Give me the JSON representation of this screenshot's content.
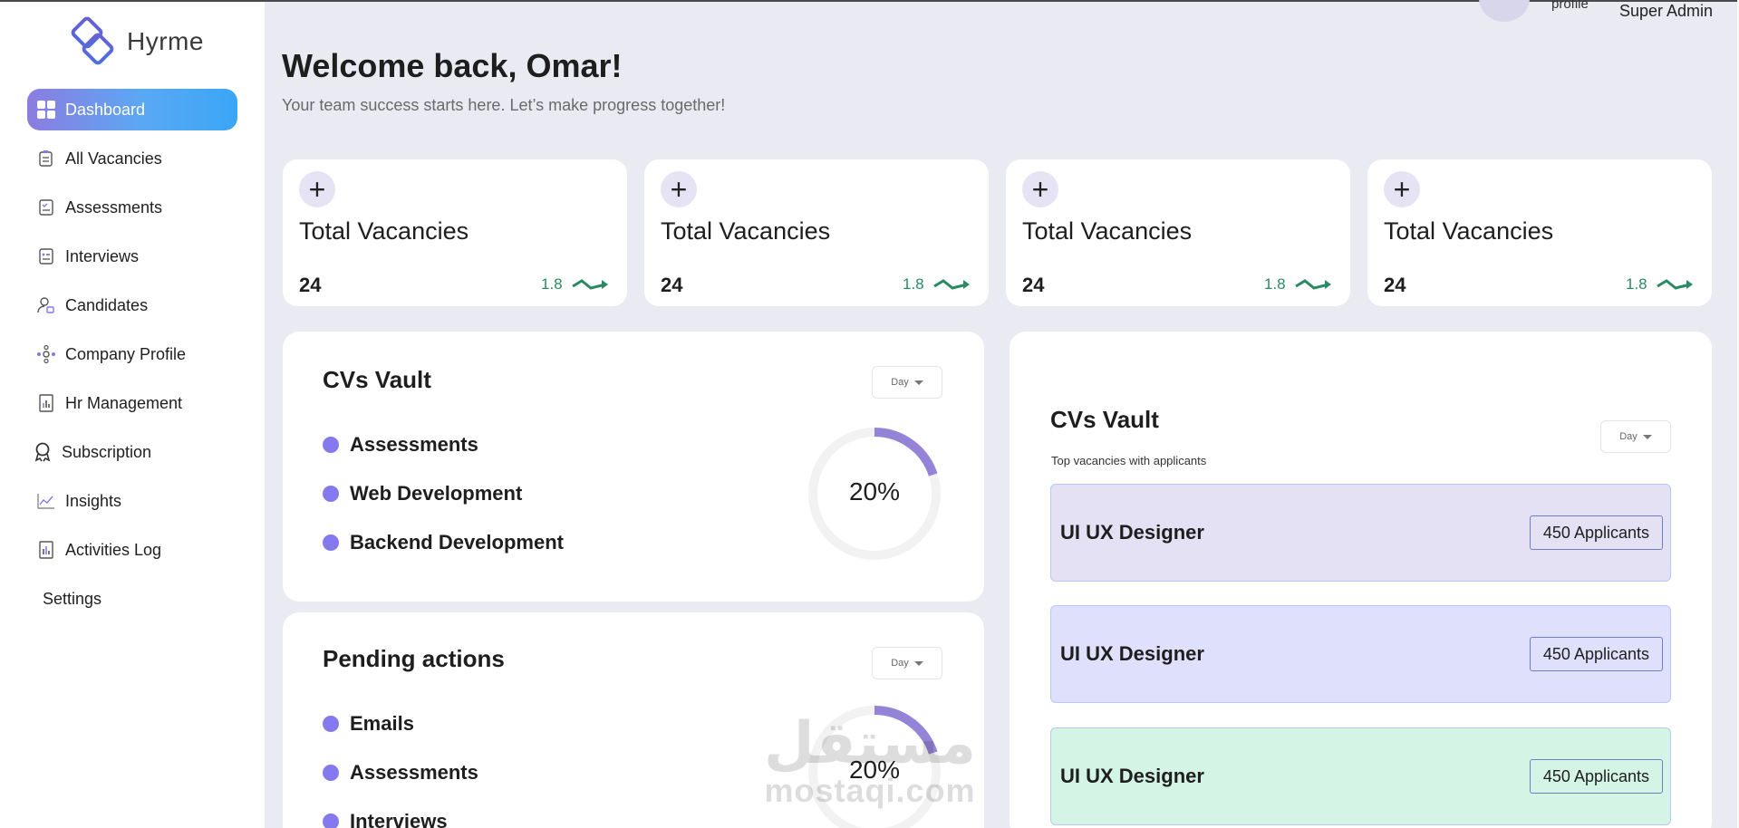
{
  "brand": {
    "name": "Hyrme"
  },
  "sidebar": {
    "items": [
      {
        "label": "Dashboard",
        "icon": "dashboard-icon"
      },
      {
        "label": "All Vacancies",
        "icon": "clipboard-icon"
      },
      {
        "label": "Assessments",
        "icon": "checklist-icon"
      },
      {
        "label": "Interviews",
        "icon": "calendar-list-icon"
      },
      {
        "label": "Candidates",
        "icon": "user-lock-icon"
      },
      {
        "label": "Company Profile",
        "icon": "network-icon"
      },
      {
        "label": "Hr Management",
        "icon": "report-icon"
      },
      {
        "label": "Subscription",
        "icon": "award-icon"
      },
      {
        "label": "Insights",
        "icon": "chart-icon"
      },
      {
        "label": "Activities Log",
        "icon": "log-icon"
      },
      {
        "label": "Settings",
        "icon": ""
      }
    ]
  },
  "header": {
    "profile_label": "profile",
    "role": "Super Admin",
    "welcome": "Welcome back, Omar!",
    "subtitle": "Your team success starts here. Let’s make progress together!"
  },
  "stats": [
    {
      "title": "Total Vacancies",
      "value": "24",
      "change": "1.8"
    },
    {
      "title": "Total Vacancies",
      "value": "24",
      "change": "1.8"
    },
    {
      "title": "Total Vacancies",
      "value": "24",
      "change": "1.8"
    },
    {
      "title": "Total Vacancies",
      "value": "24",
      "change": "1.8"
    }
  ],
  "cvs_panel": {
    "title": "CVs Vault",
    "filter": "Day",
    "items": [
      "Assessments",
      "Web Development",
      "Backend Development"
    ],
    "percent_label": "20%",
    "percent": 0.2
  },
  "pending_panel": {
    "title": "Pending actions",
    "filter": "Day",
    "items": [
      "Emails",
      "Assessments",
      "Interviews"
    ],
    "percent_label": "20%",
    "percent": 0.2
  },
  "vacancies_panel": {
    "title": "CVs Vault",
    "subtitle": "Top vacancies with applicants",
    "filter": "Day",
    "rows": [
      {
        "title": "UI UX Designer",
        "applicants": "450 Applicants",
        "color": "#e5e1f4"
      },
      {
        "title": "UI UX Designer",
        "applicants": "450 Applicants",
        "color": "#dfe0fb"
      },
      {
        "title": "UI UX Designer",
        "applicants": "450 Applicants",
        "color": "#d4f4e6"
      }
    ]
  },
  "watermark": {
    "arabic": "مستقل",
    "latin": "mostaqi.com"
  },
  "colors": {
    "accent_purple": "#8579ef",
    "gradient_start": "#8c7ce0",
    "gradient_end": "#3aa6f6",
    "trend_green": "#2b8a62",
    "background": "#e9eaf2"
  }
}
